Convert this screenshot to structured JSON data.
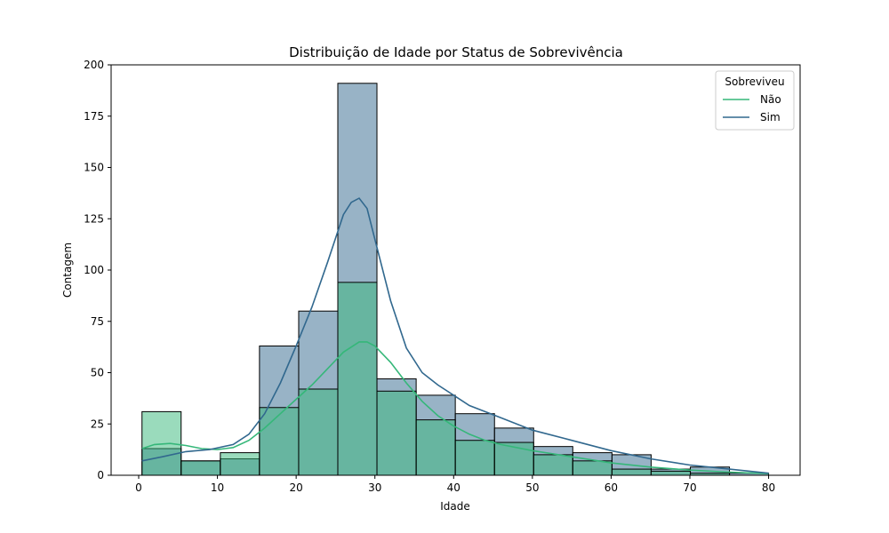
{
  "chart_data": {
    "type": "bar",
    "title": "Distribuição de Idade por Status de Sobrevivência",
    "xlabel": "Idade",
    "ylabel": "Contagem",
    "xlim": [
      -3.5,
      84
    ],
    "ylim": [
      0,
      200
    ],
    "xticks": [
      0,
      10,
      20,
      30,
      40,
      50,
      60,
      70,
      80
    ],
    "yticks": [
      0,
      25,
      50,
      75,
      100,
      125,
      150,
      175,
      200
    ],
    "bin_edges": [
      0.42,
      5.39,
      10.37,
      15.34,
      20.32,
      25.29,
      30.26,
      35.24,
      40.21,
      45.19,
      50.16,
      55.13,
      60.11,
      65.08,
      70.06,
      75.03,
      80.0
    ],
    "legend": {
      "title": "Sobreviveu",
      "position": "top-right"
    },
    "grid": false,
    "series": [
      {
        "name": "Sim",
        "color": "#31688e",
        "values": [
          13,
          7,
          8,
          63,
          80,
          191,
          47,
          39,
          30,
          23,
          14,
          11,
          10,
          3,
          4,
          1
        ],
        "kde": [
          [
            0.42,
            7
          ],
          [
            3,
            9
          ],
          [
            6,
            11.5
          ],
          [
            9,
            12.5
          ],
          [
            12,
            15
          ],
          [
            14,
            20
          ],
          [
            16,
            30
          ],
          [
            18,
            45
          ],
          [
            20,
            63
          ],
          [
            22,
            82
          ],
          [
            24,
            104
          ],
          [
            26,
            127
          ],
          [
            27,
            133
          ],
          [
            28,
            135
          ],
          [
            29,
            130
          ],
          [
            30,
            115
          ],
          [
            32,
            85
          ],
          [
            34,
            62
          ],
          [
            36,
            50
          ],
          [
            38,
            44
          ],
          [
            40,
            39
          ],
          [
            42,
            34
          ],
          [
            44,
            31
          ],
          [
            46,
            28
          ],
          [
            50,
            22
          ],
          [
            55,
            17
          ],
          [
            60,
            12
          ],
          [
            65,
            8
          ],
          [
            70,
            5
          ],
          [
            75,
            3
          ],
          [
            80,
            1
          ]
        ]
      },
      {
        "name": "Não",
        "color": "#35b779",
        "values": [
          31,
          7,
          11,
          33,
          42,
          94,
          41,
          27,
          17,
          16,
          10,
          7,
          3,
          2,
          1,
          0
        ],
        "kde": [
          [
            0.42,
            13
          ],
          [
            2,
            15
          ],
          [
            4,
            15.5
          ],
          [
            6,
            14.5
          ],
          [
            8,
            13
          ],
          [
            10,
            12.5
          ],
          [
            12,
            13.5
          ],
          [
            14,
            17
          ],
          [
            16,
            23
          ],
          [
            18,
            30
          ],
          [
            20,
            37
          ],
          [
            22,
            44
          ],
          [
            24,
            52
          ],
          [
            26,
            60
          ],
          [
            28,
            65
          ],
          [
            29,
            65
          ],
          [
            30,
            63
          ],
          [
            32,
            55
          ],
          [
            34,
            45
          ],
          [
            36,
            36
          ],
          [
            38,
            29
          ],
          [
            40,
            24
          ],
          [
            42,
            20
          ],
          [
            44,
            17
          ],
          [
            46,
            15
          ],
          [
            50,
            12
          ],
          [
            55,
            9
          ],
          [
            60,
            6
          ],
          [
            65,
            4
          ],
          [
            70,
            2.5
          ],
          [
            75,
            1.5
          ],
          [
            80,
            0.8
          ]
        ]
      }
    ]
  }
}
